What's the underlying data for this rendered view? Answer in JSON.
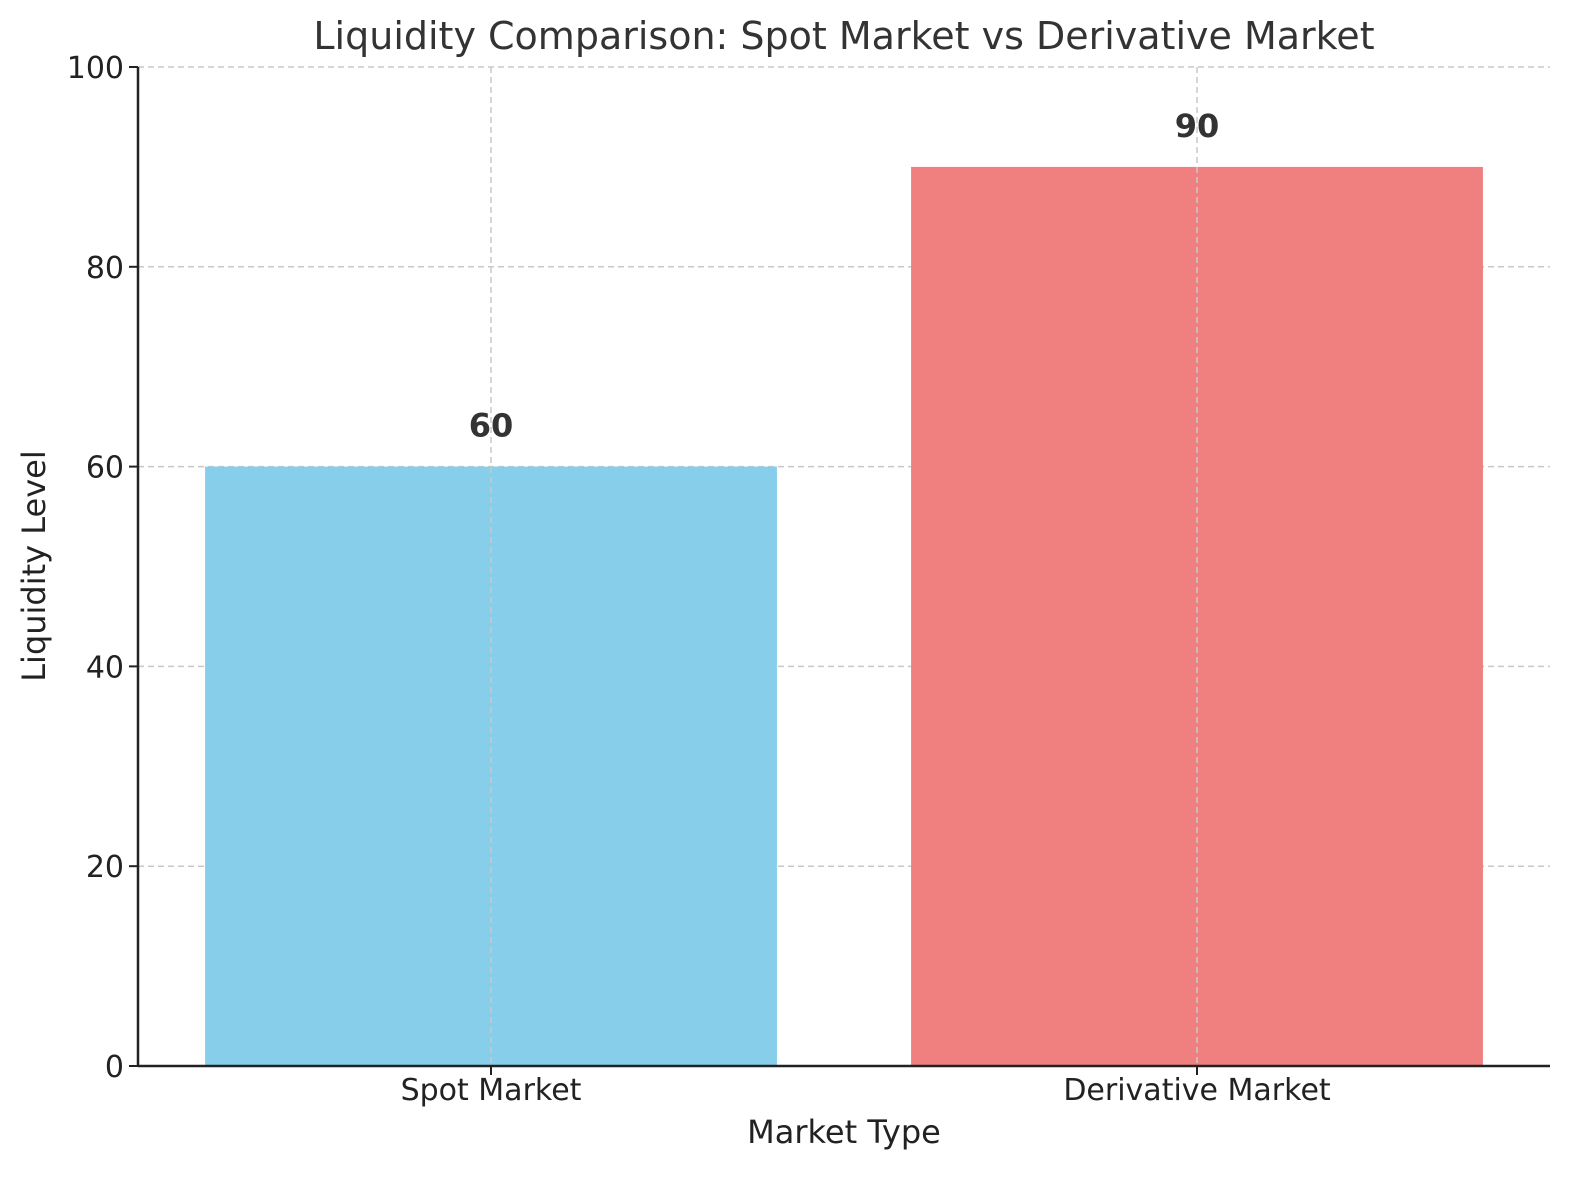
{
  "chart_data": {
    "type": "bar",
    "title": "Liquidity Comparison: Spot Market vs Derivative Market",
    "xlabel": "Market Type",
    "ylabel": "Liquidity Level",
    "categories": [
      "Spot Market",
      "Derivative Market"
    ],
    "values": [
      60,
      90
    ],
    "value_labels": [
      "60",
      "90"
    ],
    "colors": [
      "#87CEEB",
      "#F08080"
    ],
    "ylim": [
      0,
      100
    ],
    "yticks": [
      0,
      20,
      40,
      60,
      80,
      100
    ],
    "ytick_labels": [
      "0",
      "20",
      "40",
      "60",
      "80",
      "100"
    ],
    "grid": true,
    "legend": false
  }
}
